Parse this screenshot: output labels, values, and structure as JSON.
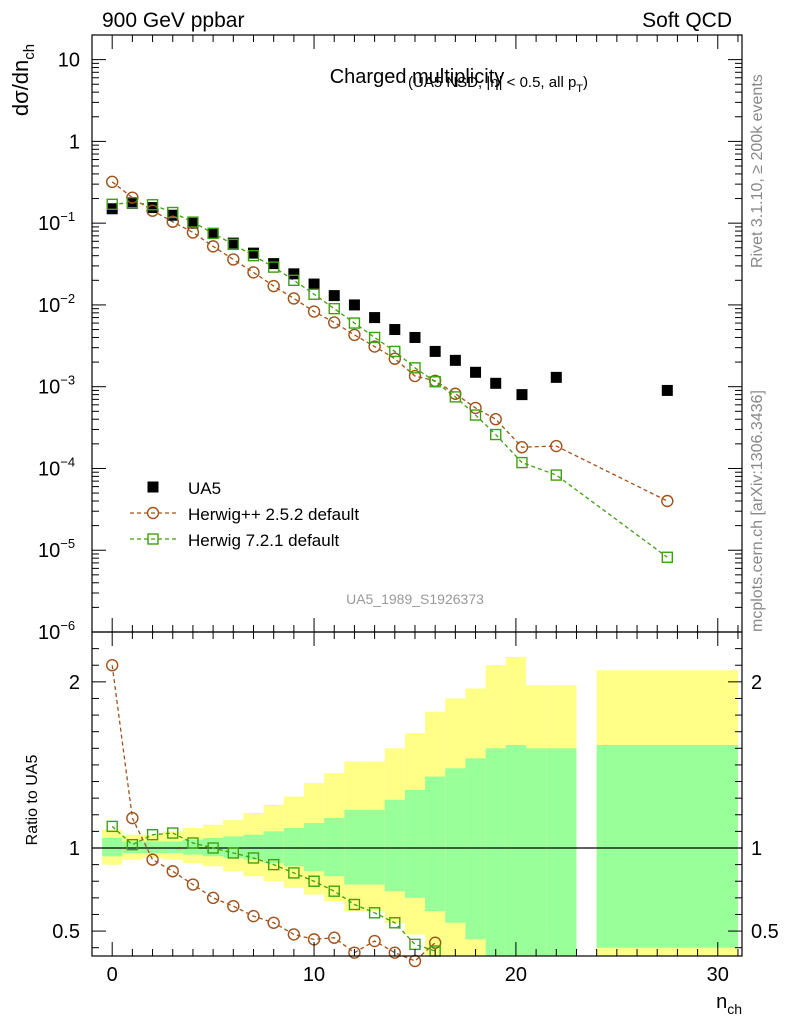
{
  "header": {
    "left": "900 GeV ppbar",
    "right": "Soft QCD"
  },
  "side_labels": {
    "rivet": "Rivet 3.1.10, ≥ 200k events",
    "mcplots": "mcplots.cern.ch [arXiv:1306.3436]"
  },
  "chart_data": [
    {
      "type": "scatter",
      "panel": "main",
      "title": "Charged multiplicity",
      "subtitle": "(UA5 NSD, |η| < 0.5, all p_T)",
      "ylabel": "dσ/dn_ch",
      "yscale": "log",
      "ylim": [
        1e-06,
        20
      ],
      "xlim": [
        -1,
        31.2
      ],
      "watermark": "UA5_1989_S1926373",
      "legend_position": "lower-left",
      "series": [
        {
          "name": "UA5",
          "color": "#000000",
          "marker": "filled-square",
          "x": [
            0,
            1,
            2,
            3,
            4,
            5,
            6,
            7,
            8,
            9,
            10,
            11,
            12,
            13,
            14,
            15,
            16,
            17,
            18,
            19,
            20.3,
            22,
            27.5
          ],
          "y": [
            0.15,
            0.175,
            0.155,
            0.125,
            0.1,
            0.075,
            0.057,
            0.043,
            0.032,
            0.024,
            0.018,
            0.013,
            0.01,
            0.007,
            0.005,
            0.004,
            0.0027,
            0.0021,
            0.0015,
            0.0011,
            0.0008,
            0.0013,
            0.0009
          ]
        },
        {
          "name": "Herwig++ 2.5.2 default",
          "color": "#a0521a",
          "marker": "open-circle",
          "x": [
            0,
            1,
            2,
            3,
            4,
            5,
            6,
            7,
            8,
            9,
            10,
            11,
            12,
            13,
            14,
            15,
            16,
            17,
            18,
            19,
            20.3,
            22,
            27.5
          ],
          "y": [
            0.32,
            0.205,
            0.142,
            0.104,
            0.077,
            0.052,
            0.036,
            0.025,
            0.017,
            0.012,
            0.0083,
            0.0061,
            0.0043,
            0.0031,
            0.0022,
            0.00135,
            0.00118,
            0.00082,
            0.00055,
            0.0004,
            0.000182,
            0.000188,
            4e-05
          ]
        },
        {
          "name": "Herwig 7.2.1 default",
          "color": "#3f9f0f",
          "marker": "open-square",
          "x": [
            0,
            1,
            2,
            3,
            4,
            5,
            6,
            7,
            8,
            9,
            10,
            11,
            12,
            13,
            14,
            15,
            16,
            17,
            18,
            19,
            20.3,
            22,
            27.5
          ],
          "y": [
            0.17,
            0.178,
            0.168,
            0.135,
            0.103,
            0.075,
            0.055,
            0.04,
            0.029,
            0.02,
            0.0135,
            0.009,
            0.006,
            0.004,
            0.0027,
            0.0017,
            0.00115,
            0.00075,
            0.00045,
            0.00026,
            0.000118,
            8.3e-05,
            8.2e-06
          ]
        }
      ]
    },
    {
      "type": "line",
      "panel": "ratio",
      "ylabel": "Ratio to UA5",
      "xlabel": "n_ch",
      "ylim": [
        0.35,
        2.3
      ],
      "xlim": [
        -1,
        31.2
      ],
      "yticks": [
        0.5,
        1,
        2
      ],
      "xticks": [
        0,
        10,
        20,
        30
      ],
      "bands": {
        "edges": [
          -0.5,
          0.5,
          1.5,
          2.5,
          3.5,
          4.5,
          5.5,
          6.5,
          7.5,
          8.5,
          9.5,
          10.5,
          11.5,
          12.5,
          13.5,
          14.5,
          15.5,
          16.5,
          17.5,
          18.5,
          19.5,
          20.5,
          21.5,
          23,
          24,
          31
        ],
        "inner_color": "#99ff99",
        "inner_lo": [
          0.95,
          0.97,
          0.97,
          0.97,
          0.96,
          0.95,
          0.94,
          0.93,
          0.91,
          0.89,
          0.86,
          0.83,
          0.78,
          0.78,
          0.74,
          0.7,
          0.62,
          0.55,
          0.45,
          0.35,
          0.25,
          0.2,
          0.2,
          null,
          0.4
        ],
        "inner_hi": [
          1.06,
          1.04,
          1.04,
          1.04,
          1.05,
          1.06,
          1.07,
          1.08,
          1.1,
          1.12,
          1.15,
          1.18,
          1.23,
          1.23,
          1.29,
          1.35,
          1.43,
          1.48,
          1.54,
          1.6,
          1.62,
          1.6,
          1.6,
          null,
          1.62
        ],
        "outer_color": "#ffff88",
        "outer_lo": [
          0.9,
          0.93,
          0.94,
          0.93,
          0.91,
          0.89,
          0.86,
          0.83,
          0.8,
          0.76,
          0.72,
          0.68,
          0.62,
          0.62,
          0.55,
          0.48,
          0.35,
          0.3,
          0.25,
          0.2,
          0.15,
          0.53,
          0.53,
          null,
          0.33
        ],
        "outer_hi": [
          1.11,
          1.08,
          1.08,
          1.1,
          1.12,
          1.14,
          1.17,
          1.21,
          1.26,
          1.31,
          1.39,
          1.45,
          1.52,
          1.52,
          1.6,
          1.69,
          1.82,
          1.9,
          1.96,
          2.1,
          2.15,
          1.98,
          1.98,
          null,
          2.07
        ]
      },
      "series": [
        {
          "name": "Herwig++ 2.5.2 default",
          "color": "#a0521a",
          "marker": "open-circle",
          "x": [
            0,
            1,
            2,
            3,
            4,
            5,
            6,
            7,
            8,
            9,
            10,
            11,
            12,
            13,
            14,
            15,
            16
          ],
          "y": [
            2.1,
            1.18,
            0.93,
            0.86,
            0.78,
            0.7,
            0.65,
            0.59,
            0.55,
            0.48,
            0.45,
            0.46,
            0.37,
            0.44,
            0.37,
            0.32,
            0.43
          ]
        },
        {
          "name": "Herwig 7.2.1 default",
          "color": "#3f9f0f",
          "marker": "open-square",
          "x": [
            0,
            1,
            2,
            3,
            4,
            5,
            6,
            7,
            8,
            9,
            10,
            11,
            12,
            13,
            14,
            15,
            16
          ],
          "y": [
            1.13,
            1.02,
            1.08,
            1.09,
            1.03,
            1.0,
            0.97,
            0.94,
            0.9,
            0.85,
            0.8,
            0.74,
            0.66,
            0.61,
            0.55,
            0.42,
            0.38
          ]
        }
      ]
    }
  ]
}
